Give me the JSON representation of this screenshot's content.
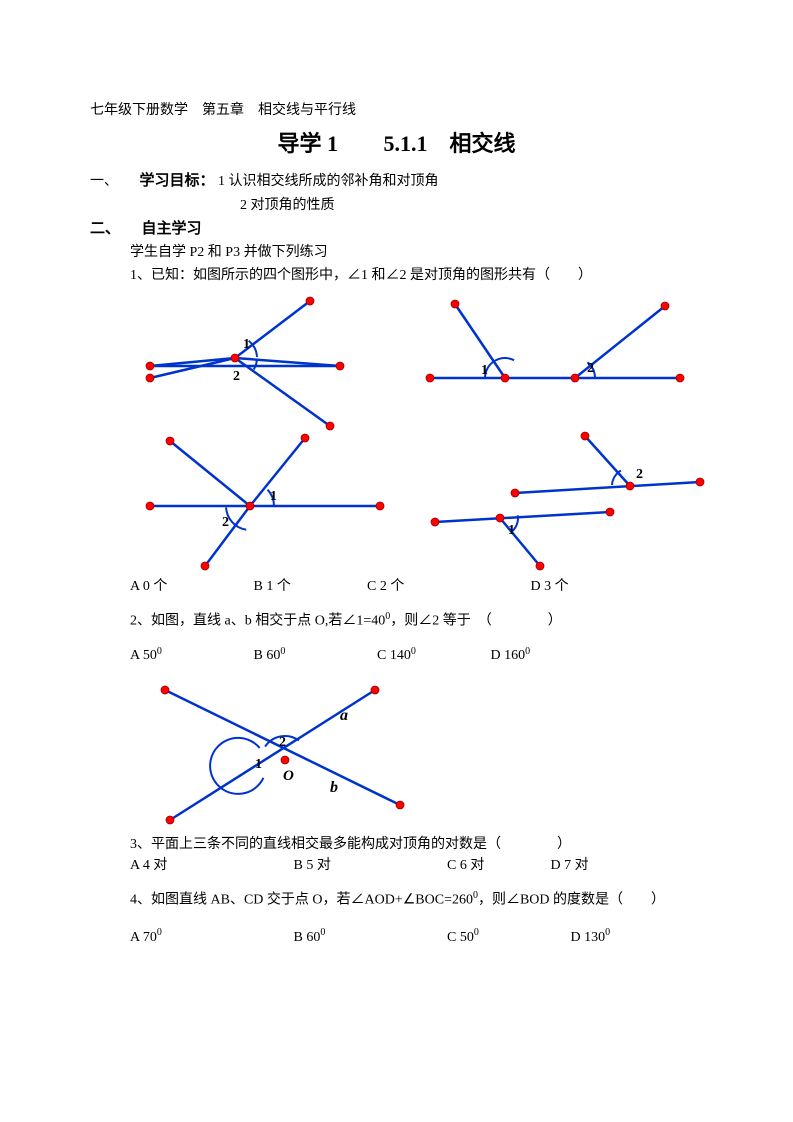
{
  "header": "七年级下册数学　第五章　相交线与平行线",
  "title_left": "导学 1",
  "title_right": "5.1.1　相交线",
  "sec1_num": "一、",
  "sec1_label": "学习目标：",
  "sec1_line1": "1 认识相交线所成的邻补角和对顶角",
  "sec1_line2": "2 对顶角的性质",
  "sec2_num": "二、",
  "sec2_label": "自主学习",
  "sec2_instr": "学生自学 P2 和 P3 并做下列练习",
  "q1_text": "1、已知：如图所示的四个图形中，∠1 和∠2 是对顶角的图形共有（　　）",
  "q1_optA": "A 0 个",
  "q1_optB": "B 1 个",
  "q1_optC": "C 2 个",
  "q1_optD": "D 3 个",
  "q2_text_a": "2、如图，直线 a、b 相交于点 O,若∠1=",
  "q2_angle": "40",
  "q2_text_b": "，则∠2 等于　（　　　　）",
  "q2_A": "A  50",
  "q2_B": "B 60",
  "q2_C": "C 140",
  "q2_D": "D 160",
  "q3_text": "3、平面上三条不同的直线相交最多能构成对顶角的对数是（　　　　）",
  "q3_A": "A  4 对",
  "q3_B": "B 5 对",
  "q3_C": "C 6 对",
  "q3_D": "D 7 对",
  "q4_text_a": "4、如图直线 AB、CD 交于点 O，若∠AOD+∠BOC=260",
  "q4_text_b": "，则∠BOD 的度数是（　　）",
  "q4_A": "A  70",
  "q4_B": "B 60",
  "q4_C": "C 50",
  "q4_D": "D 130",
  "fig": {
    "line_color": "#0033cc",
    "dot_color": "#ff0000",
    "dot_stroke": "#990000",
    "label_font": "bold 14px 'Times New Roman', serif",
    "italic_font": "italic bold 16px 'Times New Roman', serif"
  }
}
